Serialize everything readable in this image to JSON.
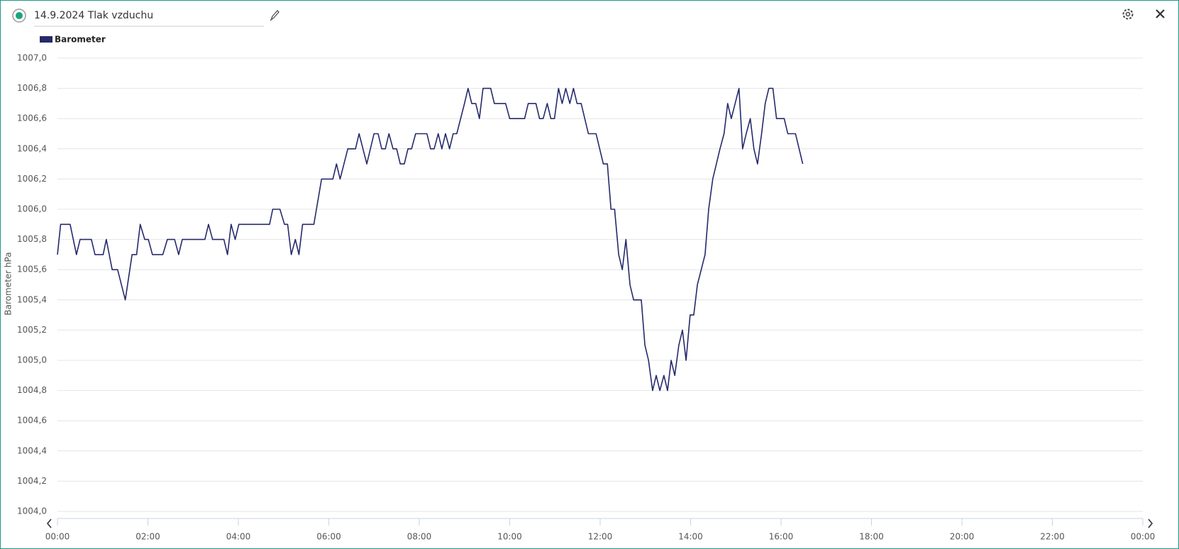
{
  "chart_data": {
    "type": "line",
    "title": "14.9.2024 Tlak vzduchu",
    "y_label": "Barometer hPa",
    "x": [
      0,
      0.07,
      0.28,
      0.42,
      0.5,
      0.75,
      0.83,
      1.01,
      1.08,
      1.21,
      1.33,
      1.5,
      1.65,
      1.75,
      1.83,
      1.93,
      2.01,
      2.1,
      2.33,
      2.43,
      2.59,
      2.68,
      2.76,
      3.26,
      3.34,
      3.43,
      3.68,
      3.76,
      3.84,
      3.93,
      4.01,
      4.69,
      4.76,
      4.92,
      5.02,
      5.09,
      5.17,
      5.26,
      5.34,
      5.42,
      5.67,
      5.84,
      6.09,
      6.17,
      6.25,
      6.42,
      6.59,
      6.67,
      6.84,
      7.0,
      7.09,
      7.17,
      7.25,
      7.33,
      7.42,
      7.5,
      7.58,
      7.67,
      7.75,
      7.83,
      7.92,
      8.17,
      8.25,
      8.33,
      8.42,
      8.5,
      8.58,
      8.67,
      8.75,
      8.83,
      9.0,
      9.08,
      9.16,
      9.25,
      9.33,
      9.41,
      9.58,
      9.66,
      9.91,
      10.0,
      10.33,
      10.41,
      10.58,
      10.66,
      10.74,
      10.83,
      10.91,
      10.99,
      11.08,
      11.16,
      11.24,
      11.33,
      11.41,
      11.49,
      11.58,
      11.74,
      11.91,
      11.99,
      12.07,
      12.16,
      12.24,
      12.32,
      12.41,
      12.49,
      12.57,
      12.66,
      12.74,
      12.91,
      12.99,
      13.07,
      13.16,
      13.24,
      13.32,
      13.41,
      13.49,
      13.57,
      13.65,
      13.74,
      13.82,
      13.9,
      13.99,
      14.07,
      14.15,
      14.32,
      14.4,
      14.49,
      14.65,
      14.74,
      14.82,
      14.9,
      15.07,
      15.15,
      15.23,
      15.32,
      15.4,
      15.48,
      15.57,
      15.65,
      15.73,
      15.82,
      15.9,
      16.07,
      16.15,
      16.32,
      16.4,
      16.48
    ],
    "series": [
      {
        "name": "Barometer",
        "color": "#252a6b",
        "values": [
          1005.7,
          1005.9,
          1005.9,
          1005.7,
          1005.8,
          1005.8,
          1005.7,
          1005.7,
          1005.8,
          1005.6,
          1005.6,
          1005.4,
          1005.7,
          1005.7,
          1005.9,
          1005.8,
          1005.8,
          1005.7,
          1005.7,
          1005.8,
          1005.8,
          1005.7,
          1005.8,
          1005.8,
          1005.9,
          1005.8,
          1005.8,
          1005.7,
          1005.9,
          1005.8,
          1005.9,
          1005.9,
          1006.0,
          1006.0,
          1005.9,
          1005.9,
          1005.7,
          1005.8,
          1005.7,
          1005.9,
          1005.9,
          1006.2,
          1006.2,
          1006.3,
          1006.2,
          1006.4,
          1006.4,
          1006.5,
          1006.3,
          1006.5,
          1006.5,
          1006.4,
          1006.4,
          1006.5,
          1006.4,
          1006.4,
          1006.3,
          1006.3,
          1006.4,
          1006.4,
          1006.5,
          1006.5,
          1006.4,
          1006.4,
          1006.5,
          1006.4,
          1006.5,
          1006.4,
          1006.5,
          1006.5,
          1006.7,
          1006.8,
          1006.7,
          1006.7,
          1006.6,
          1006.8,
          1006.8,
          1006.7,
          1006.7,
          1006.6,
          1006.6,
          1006.7,
          1006.7,
          1006.6,
          1006.6,
          1006.7,
          1006.6,
          1006.6,
          1006.8,
          1006.7,
          1006.8,
          1006.7,
          1006.8,
          1006.7,
          1006.7,
          1006.5,
          1006.5,
          1006.4,
          1006.3,
          1006.3,
          1006.0,
          1006.0,
          1005.7,
          1005.6,
          1005.8,
          1005.5,
          1005.4,
          1005.4,
          1005.1,
          1005.0,
          1004.8,
          1004.9,
          1004.8,
          1004.9,
          1004.8,
          1005.0,
          1004.9,
          1005.1,
          1005.2,
          1005.0,
          1005.3,
          1005.3,
          1005.5,
          1005.7,
          1006.0,
          1006.2,
          1006.4,
          1006.5,
          1006.7,
          1006.6,
          1006.8,
          1006.4,
          1006.5,
          1006.6,
          1006.4,
          1006.3,
          1006.5,
          1006.7,
          1006.8,
          1006.8,
          1006.6,
          1006.6,
          1006.5,
          1006.5,
          1006.4,
          1006.3
        ]
      }
    ],
    "xlim": [
      0,
      24
    ],
    "xticks": [
      {
        "value": 0,
        "label": "00:00"
      },
      {
        "value": 2,
        "label": "02:00"
      },
      {
        "value": 4,
        "label": "04:00"
      },
      {
        "value": 6,
        "label": "06:00"
      },
      {
        "value": 8,
        "label": "08:00"
      },
      {
        "value": 10,
        "label": "10:00"
      },
      {
        "value": 12,
        "label": "12:00"
      },
      {
        "value": 14,
        "label": "14:00"
      },
      {
        "value": 16,
        "label": "16:00"
      },
      {
        "value": 18,
        "label": "18:00"
      },
      {
        "value": 20,
        "label": "20:00"
      },
      {
        "value": 22,
        "label": "22:00"
      },
      {
        "value": 24,
        "label": "00:00"
      }
    ],
    "ylim": [
      1004,
      1007
    ],
    "yticks": [
      {
        "value": 1004.0,
        "label": "1004,0"
      },
      {
        "value": 1004.2,
        "label": "1004,2"
      },
      {
        "value": 1004.4,
        "label": "1004,4"
      },
      {
        "value": 1004.6,
        "label": "1004,6"
      },
      {
        "value": 1004.8,
        "label": "1004,8"
      },
      {
        "value": 1005.0,
        "label": "1005,0"
      },
      {
        "value": 1005.2,
        "label": "1005,2"
      },
      {
        "value": 1005.4,
        "label": "1005,4"
      },
      {
        "value": 1005.6,
        "label": "1005,6"
      },
      {
        "value": 1005.8,
        "label": "1005,8"
      },
      {
        "value": 1006.0,
        "label": "1006,0"
      },
      {
        "value": 1006.2,
        "label": "1006,2"
      },
      {
        "value": 1006.4,
        "label": "1006,4"
      },
      {
        "value": 1006.6,
        "label": "1006,6"
      },
      {
        "value": 1006.8,
        "label": "1006,8"
      },
      {
        "value": 1007.0,
        "label": "1007,0"
      }
    ],
    "grid": true
  }
}
